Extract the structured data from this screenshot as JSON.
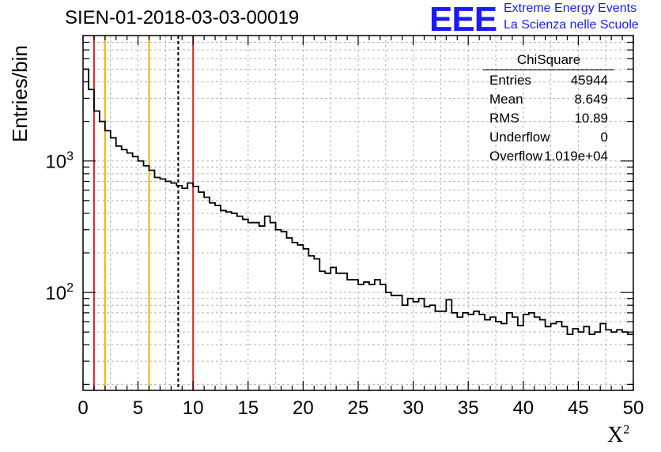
{
  "chart_data": {
    "type": "histogram",
    "title": "SIEN-01-2018-03-03-00019",
    "xlabel": "X",
    "xlabel_sup": "2",
    "ylabel": "Entries/bin",
    "xlim": [
      0,
      50
    ],
    "ylim": [
      18,
      9000
    ],
    "yscale": "log",
    "grid": true,
    "xticks": [
      0,
      5,
      10,
      15,
      20,
      25,
      30,
      35,
      40,
      45,
      50
    ],
    "yticks": [
      {
        "value": 100,
        "base": "10",
        "exp": "2"
      },
      {
        "value": 1000,
        "base": "10",
        "exp": "3"
      }
    ],
    "bin_width": 0.5,
    "values": [
      5000,
      3500,
      2400,
      2000,
      1700,
      1500,
      1300,
      1220,
      1150,
      1080,
      1000,
      920,
      850,
      750,
      730,
      700,
      680,
      650,
      620,
      680,
      640,
      580,
      530,
      480,
      460,
      420,
      410,
      400,
      380,
      360,
      340,
      340,
      320,
      380,
      340,
      300,
      290,
      260,
      240,
      230,
      215,
      190,
      180,
      145,
      140,
      155,
      140,
      140,
      125,
      125,
      115,
      120,
      115,
      125,
      115,
      100,
      95,
      95,
      80,
      90,
      85,
      90,
      78,
      80,
      72,
      72,
      88,
      70,
      65,
      70,
      68,
      72,
      68,
      62,
      65,
      60,
      58,
      70,
      65,
      56,
      68,
      70,
      65,
      62,
      55,
      58,
      60,
      55,
      48,
      53,
      50,
      55,
      48,
      50,
      58,
      52,
      50,
      52,
      50,
      48
    ],
    "vertical_lines": [
      {
        "x": 1,
        "color": "#dd2222",
        "style": "solid"
      },
      {
        "x": 2,
        "color": "#f0b400",
        "style": "solid"
      },
      {
        "x": 6,
        "color": "#f0b400",
        "style": "solid"
      },
      {
        "x": 8.649,
        "color": "#000000",
        "style": "dashed"
      },
      {
        "x": 10,
        "color": "#dd2222",
        "style": "solid"
      }
    ]
  },
  "stats": {
    "title": "ChiSquare",
    "rows": [
      {
        "key": "Entries",
        "value": "45944"
      },
      {
        "key": "Mean",
        "value": "8.649"
      },
      {
        "key": "RMS",
        "value": "10.89"
      },
      {
        "key": "Underflow",
        "value": "0"
      },
      {
        "key": "Overflow",
        "value": "1.019e+04"
      }
    ]
  },
  "logo": {
    "mark": "EEE",
    "line1": "Extreme Energy Events",
    "line2": "La Scienza nelle Scuole"
  },
  "colors": {
    "accent_blue": "#1a1aff",
    "grid": "#b4b4b4"
  }
}
